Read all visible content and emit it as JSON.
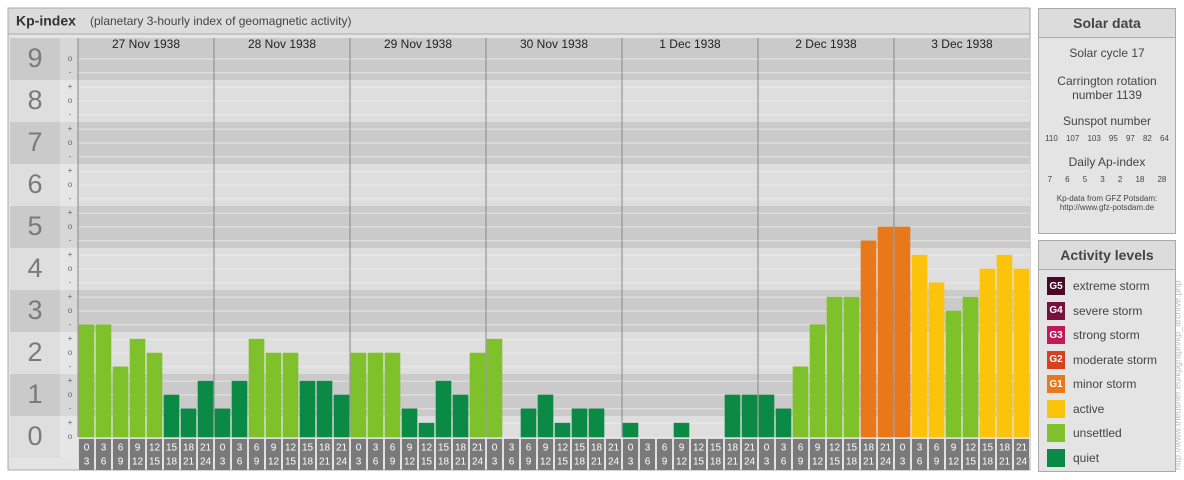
{
  "title": "Kp-index",
  "subtitle": "(planetary 3-hourly index of geomagnetic activity)",
  "chart_data": {
    "type": "bar",
    "categories": [
      "27 Nov 1938",
      "28 Nov 1938",
      "29 Nov 1938",
      "30 Nov 1938",
      "1 Dec 1938",
      "2 Dec 1938",
      "3 Dec 1938"
    ],
    "hour_labels": [
      [
        "0",
        "3"
      ],
      [
        "3",
        "6"
      ],
      [
        "6",
        "9"
      ],
      [
        "9",
        "12"
      ],
      [
        "12",
        "15"
      ],
      [
        "15",
        "18"
      ],
      [
        "18",
        "21"
      ],
      [
        "21",
        "24"
      ]
    ],
    "values": [
      [
        2.67,
        2.67,
        1.67,
        2.33,
        2,
        1,
        0.67,
        1.33
      ],
      [
        0.67,
        1.33,
        2.33,
        2,
        2,
        1.33,
        1.33,
        1
      ],
      [
        2,
        2,
        2,
        0.67,
        0.33,
        1.33,
        1,
        2
      ],
      [
        2.33,
        0,
        0.67,
        1,
        0.33,
        0.67,
        0.67,
        0
      ],
      [
        0.33,
        0,
        0,
        0.33,
        0,
        0,
        1,
        1
      ],
      [
        1,
        0.67,
        1.67,
        2.67,
        3.33,
        3.33,
        4.67,
        5
      ],
      [
        5,
        4.33,
        3.67,
        3,
        3.33,
        4,
        4.33,
        4
      ]
    ],
    "colors": [
      [
        "#7ec12a",
        "#7ec12a",
        "#7ec12a",
        "#7ec12a",
        "#7ec12a",
        "#0a8a44",
        "#0a8a44",
        "#0a8a44"
      ],
      [
        "#0a8a44",
        "#0a8a44",
        "#7ec12a",
        "#7ec12a",
        "#7ec12a",
        "#0a8a44",
        "#0a8a44",
        "#0a8a44"
      ],
      [
        "#7ec12a",
        "#7ec12a",
        "#7ec12a",
        "#0a8a44",
        "#0a8a44",
        "#0a8a44",
        "#0a8a44",
        "#7ec12a"
      ],
      [
        "#7ec12a",
        "#0a8a44",
        "#0a8a44",
        "#0a8a44",
        "#0a8a44",
        "#0a8a44",
        "#0a8a44",
        "#0a8a44"
      ],
      [
        "#0a8a44",
        "#0a8a44",
        "#0a8a44",
        "#0a8a44",
        "#0a8a44",
        "#0a8a44",
        "#0a8a44",
        "#0a8a44"
      ],
      [
        "#0a8a44",
        "#0a8a44",
        "#7ec12a",
        "#7ec12a",
        "#7ec12a",
        "#7ec12a",
        "#e8781a",
        "#e8781a"
      ],
      [
        "#e8781a",
        "#fcc30b",
        "#fcc30b",
        "#7ec12a",
        "#7ec12a",
        "#fcc30b",
        "#fcc30b",
        "#fcc30b"
      ]
    ],
    "ylim": [
      -0.5,
      9.5
    ],
    "yticks": [
      0,
      1,
      2,
      3,
      4,
      5,
      6,
      7,
      8,
      9
    ],
    "minor_yticks": [
      {
        "value": 0,
        "label": "o"
      },
      {
        "value": 0.33,
        "label": "+"
      },
      {
        "value": 0.67,
        "label": "-"
      },
      {
        "value": 1,
        "label": "o"
      },
      {
        "value": 1.33,
        "label": "+"
      },
      {
        "value": 1.67,
        "label": "-"
      },
      {
        "value": 2,
        "label": "o"
      },
      {
        "value": 2.33,
        "label": "+"
      },
      {
        "value": 2.67,
        "label": "-"
      },
      {
        "value": 3,
        "label": "o"
      },
      {
        "value": 3.33,
        "label": "+"
      },
      {
        "value": 3.67,
        "label": "-"
      },
      {
        "value": 4,
        "label": "o"
      },
      {
        "value": 4.33,
        "label": "+"
      },
      {
        "value": 4.67,
        "label": "-"
      },
      {
        "value": 5,
        "label": "o"
      },
      {
        "value": 5.33,
        "label": "+"
      },
      {
        "value": 5.67,
        "label": "-"
      },
      {
        "value": 6,
        "label": "o"
      },
      {
        "value": 6.33,
        "label": "+"
      },
      {
        "value": 6.67,
        "label": "-"
      },
      {
        "value": 7,
        "label": "o"
      },
      {
        "value": 7.33,
        "label": "+"
      },
      {
        "value": 7.67,
        "label": "-"
      },
      {
        "value": 8,
        "label": "o"
      },
      {
        "value": 8.33,
        "label": "+"
      },
      {
        "value": 8.67,
        "label": "-"
      },
      {
        "value": 9,
        "label": "o"
      }
    ]
  },
  "solar_data": {
    "title": "Solar data",
    "cycle": "Solar cycle 17",
    "rotation": "Carrington rotation number 1139",
    "sunspot_title": "Sunspot number",
    "sunspot": [
      110,
      107,
      103,
      95,
      97,
      82,
      64
    ],
    "ap_title": "Daily Ap-index",
    "ap": [
      7,
      6,
      5,
      3,
      2,
      18,
      28
    ],
    "source": "Kp-data from GFZ Potsdam:",
    "url": "http://www.gfz-potsdam.de"
  },
  "activity_levels": {
    "title": "Activity levels",
    "items": [
      {
        "code": "G5",
        "label": "extreme storm",
        "color": "#4a0a24"
      },
      {
        "code": "G4",
        "label": "severe storm",
        "color": "#78103e"
      },
      {
        "code": "G3",
        "label": "strong storm",
        "color": "#c01a5c"
      },
      {
        "code": "G2",
        "label": "moderate storm",
        "color": "#d8401e"
      },
      {
        "code": "G1",
        "label": "minor storm",
        "color": "#e8781a"
      },
      {
        "label": "active",
        "color": "#fcc30b"
      },
      {
        "label": "unsettled",
        "color": "#7ec12a"
      },
      {
        "label": "quiet",
        "color": "#0a8a44"
      }
    ]
  },
  "watermark": "http://www.theusner.eu/kpgraph/kp_archive.php"
}
